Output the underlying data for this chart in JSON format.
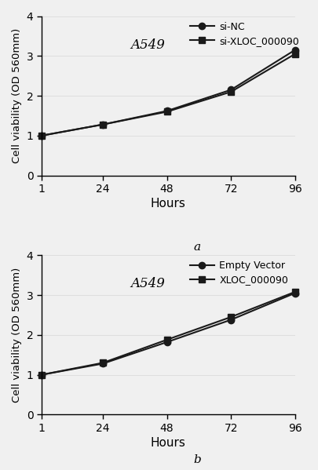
{
  "hours": [
    1,
    24,
    48,
    72,
    96
  ],
  "panel_a": {
    "title": "A549",
    "series": [
      {
        "label": "si-NC",
        "marker": "o",
        "values": [
          1.0,
          1.28,
          1.62,
          2.15,
          3.15
        ]
      },
      {
        "label": "si-XLOC_000090",
        "marker": "s",
        "values": [
          1.0,
          1.28,
          1.6,
          2.1,
          3.05
        ]
      }
    ]
  },
  "panel_b": {
    "title": "A549",
    "series": [
      {
        "label": "Empty Vector",
        "marker": "o",
        "values": [
          1.0,
          1.28,
          1.82,
          2.38,
          3.05
        ]
      },
      {
        "label": "XLOC_000090",
        "marker": "s",
        "values": [
          1.0,
          1.3,
          1.88,
          2.45,
          3.08
        ]
      }
    ]
  },
  "xlabel": "Hours",
  "ylabel": "Cell viability (OD 560mm)",
  "ylim": [
    0,
    4
  ],
  "yticks": [
    0,
    1,
    2,
    3,
    4
  ],
  "line_color": "#1a1a1a",
  "marker_size": 6,
  "line_width": 1.5,
  "label_a": "a",
  "label_b": "b",
  "background_color": "#f0f0f0"
}
